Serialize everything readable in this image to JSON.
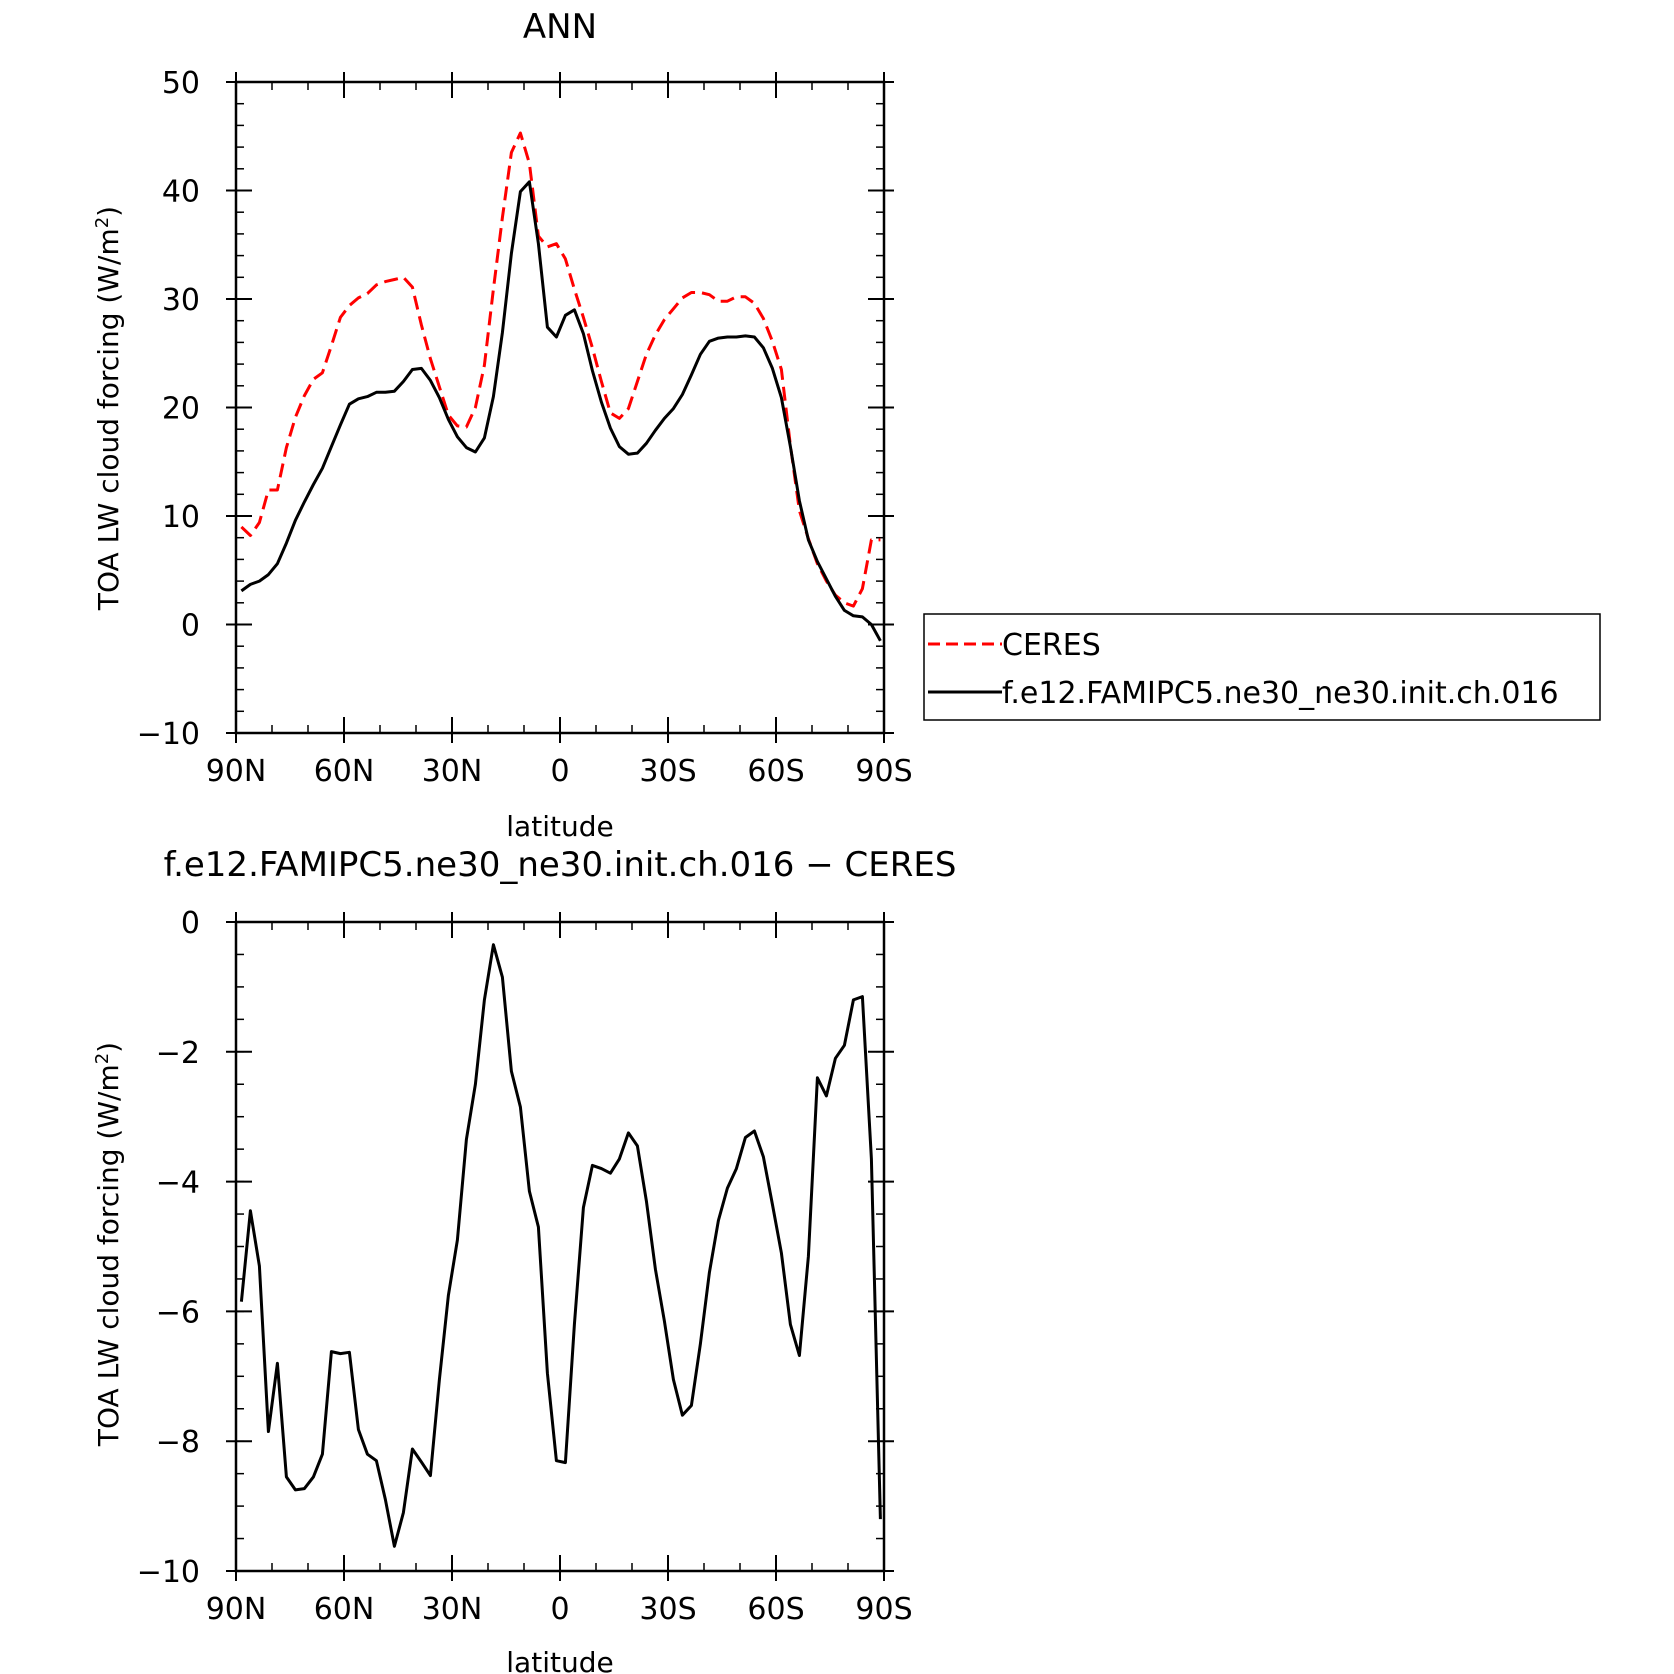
{
  "chart_data": [
    {
      "type": "line",
      "title": "ANN",
      "xlabel": "latitude",
      "ylabel": "TOA LW cloud forcing (W/m2)",
      "ylabel_main": "TOA LW cloud forcing (W/m",
      "ylabel_sup": "2",
      "ylabel_end": ")",
      "xlim": [
        90,
        -90
      ],
      "ylim": [
        -10,
        50
      ],
      "xticks": [
        {
          "value": 90,
          "label": "90N"
        },
        {
          "value": 60,
          "label": "60N"
        },
        {
          "value": 30,
          "label": "30N"
        },
        {
          "value": 0,
          "label": "0"
        },
        {
          "value": -30,
          "label": "30S"
        },
        {
          "value": -60,
          "label": "60S"
        },
        {
          "value": -90,
          "label": "90S"
        }
      ],
      "yticks": [
        {
          "value": 50,
          "label": "50"
        },
        {
          "value": 40,
          "label": "40"
        },
        {
          "value": 30,
          "label": "30"
        },
        {
          "value": 20,
          "label": "20"
        },
        {
          "value": 10,
          "label": "10"
        },
        {
          "value": 0,
          "label": "0"
        },
        {
          "value": -10,
          "label": "−10"
        }
      ],
      "legend": "right",
      "series": [
        {
          "name": "CERES",
          "color": "#ff0000",
          "dash": true,
          "x": [
            88.5,
            86,
            83.5,
            81,
            78.5,
            76,
            73.5,
            71,
            68.5,
            66,
            63.5,
            61,
            58.5,
            56,
            53.5,
            51,
            48.5,
            46,
            43.5,
            41,
            38.5,
            36,
            33.5,
            31,
            28.5,
            26,
            23.5,
            21,
            18.5,
            16,
            13.5,
            11,
            8.5,
            6,
            3.5,
            1,
            -1.5,
            -4,
            -6.5,
            -9,
            -11.5,
            -14,
            -16.5,
            -19,
            -21.5,
            -24,
            -26.5,
            -29,
            -31.5,
            -34,
            -36.5,
            -39,
            -41.5,
            -44,
            -46.5,
            -49,
            -51.5,
            -54,
            -56.5,
            -59,
            -61.5,
            -64,
            -66.5,
            -69,
            -71.5,
            -74,
            -76.5,
            -79,
            -81.5,
            -84,
            -86.5,
            -89
          ],
          "y": [
            9,
            8.2,
            9.4,
            12.4,
            12.4,
            16.3,
            19.1,
            21.1,
            22.6,
            23.2,
            25.7,
            28.3,
            29.4,
            30.1,
            30.5,
            31.3,
            31.6,
            31.8,
            32,
            31.1,
            27.6,
            24.5,
            21.9,
            19.3,
            18.3,
            18.2,
            20,
            23.9,
            30.9,
            37.5,
            43.5,
            45.3,
            42.5,
            35.8,
            34.8,
            35.1,
            33.7,
            30.9,
            28.3,
            25.5,
            22.4,
            19.5,
            19,
            19.9,
            22.4,
            24.9,
            26.7,
            28.1,
            29.1,
            30.1,
            30.6,
            30.6,
            30.4,
            29.8,
            29.8,
            30.2,
            30.2,
            29.6,
            28.2,
            26.1,
            23.5,
            16.5,
            10.5,
            7.9,
            5.6,
            4,
            2.7,
            2,
            1.7,
            3.3,
            7.8,
            7.8
          ]
        },
        {
          "name": "f.e12.FAMIPC5.ne30_ne30.init.ch.016",
          "color": "#000000",
          "dash": false,
          "x": [
            88.5,
            86,
            83.5,
            81,
            78.5,
            76,
            73.5,
            71,
            68.5,
            66,
            63.5,
            61,
            58.5,
            56,
            53.5,
            51,
            48.5,
            46,
            43.5,
            41,
            38.5,
            36,
            33.5,
            31,
            28.5,
            26,
            23.5,
            21,
            18.5,
            16,
            13.5,
            11,
            8.5,
            6,
            3.5,
            1,
            -1.5,
            -4,
            -6.5,
            -9,
            -11.5,
            -14,
            -16.5,
            -19,
            -21.5,
            -24,
            -26.5,
            -29,
            -31.5,
            -34,
            -36.5,
            -39,
            -41.5,
            -44,
            -46.5,
            -49,
            -51.5,
            -54,
            -56.5,
            -59,
            -61.5,
            -64,
            -66.5,
            -69,
            -71.5,
            -74,
            -76.5,
            -79,
            -81.5,
            -84,
            -86.5,
            -89
          ],
          "y": [
            3.1,
            3.7,
            4,
            4.6,
            5.6,
            7.5,
            9.6,
            11.3,
            12.9,
            14.4,
            16.4,
            18.4,
            20.3,
            20.8,
            21,
            21.4,
            21.4,
            21.5,
            22.4,
            23.5,
            23.6,
            22.5,
            20.9,
            18.9,
            17.3,
            16.3,
            15.9,
            17.2,
            21,
            26.9,
            34.2,
            39.9,
            40.8,
            35.1,
            27.4,
            26.5,
            28.5,
            29,
            26.8,
            23.4,
            20.5,
            18.1,
            16.4,
            15.7,
            15.8,
            16.7,
            17.9,
            19,
            19.9,
            21.2,
            23,
            24.9,
            26.1,
            26.4,
            26.5,
            26.5,
            26.6,
            26.5,
            25.5,
            23.6,
            20.9,
            16.4,
            11.4,
            7.8,
            5.8,
            4.2,
            2.6,
            1.3,
            0.8,
            0.7,
            0,
            -1.5
          ]
        }
      ]
    },
    {
      "type": "line",
      "title": "f.e12.FAMIPC5.ne30_ne30.init.ch.016 − CERES",
      "xlabel": "latitude",
      "ylabel": "TOA LW cloud forcing (W/m2)",
      "ylabel_main": "TOA LW cloud forcing (W/m",
      "ylabel_sup": "2",
      "ylabel_end": ")",
      "xlim": [
        90,
        -90
      ],
      "ylim": [
        -10,
        0
      ],
      "xticks": [
        {
          "value": 90,
          "label": "90N"
        },
        {
          "value": 60,
          "label": "60N"
        },
        {
          "value": 30,
          "label": "30N"
        },
        {
          "value": 0,
          "label": "0"
        },
        {
          "value": -30,
          "label": "30S"
        },
        {
          "value": -60,
          "label": "60S"
        },
        {
          "value": -90,
          "label": "90S"
        }
      ],
      "yticks": [
        {
          "value": 0,
          "label": "0"
        },
        {
          "value": -2,
          "label": "−2"
        },
        {
          "value": -4,
          "label": "−4"
        },
        {
          "value": -6,
          "label": "−6"
        },
        {
          "value": -8,
          "label": "−8"
        },
        {
          "value": -10,
          "label": "−10"
        }
      ],
      "series": [
        {
          "color": "#000000",
          "dash": false,
          "x": [
            88.5,
            86,
            83.5,
            81,
            78.5,
            76,
            73.5,
            71,
            68.5,
            66,
            63.5,
            61,
            58.5,
            56,
            53.5,
            51,
            48.5,
            46,
            43.5,
            41,
            38.5,
            36,
            33.5,
            31,
            28.5,
            26,
            23.5,
            21,
            18.5,
            16,
            13.5,
            11,
            8.5,
            6,
            3.5,
            1,
            -1.5,
            -4,
            -6.5,
            -9,
            -11.5,
            -14,
            -16.5,
            -19,
            -21.5,
            -24,
            -26.5,
            -29,
            -31.5,
            -34,
            -36.5,
            -39,
            -41.5,
            -44,
            -46.5,
            -49,
            -51.5,
            -54,
            -56.5,
            -59,
            -61.5,
            -64,
            -66.5,
            -69,
            -71.5,
            -74,
            -76.5,
            -79,
            -81.5,
            -84,
            -86.5,
            -89
          ],
          "y": [
            -5.85,
            -4.45,
            -5.3,
            -7.85,
            -6.8,
            -8.55,
            -8.75,
            -8.73,
            -8.55,
            -8.2,
            -6.62,
            -6.65,
            -6.63,
            -7.82,
            -8.2,
            -8.3,
            -8.9,
            -9.62,
            -9.1,
            -8.12,
            -8.32,
            -8.53,
            -7.05,
            -5.75,
            -4.9,
            -3.35,
            -2.5,
            -1.2,
            -0.35,
            -0.85,
            -2.3,
            -2.85,
            -4.15,
            -4.7,
            -6.95,
            -8.3,
            -8.33,
            -6.2,
            -4.4,
            -3.75,
            -3.8,
            -3.87,
            -3.65,
            -3.25,
            -3.45,
            -4.3,
            -5.35,
            -6.15,
            -7.05,
            -7.6,
            -7.45,
            -6.5,
            -5.4,
            -4.6,
            -4.1,
            -3.8,
            -3.32,
            -3.22,
            -3.62,
            -4.35,
            -5.1,
            -6.2,
            -6.68,
            -5.15,
            -2.4,
            -2.68,
            -2.1,
            -1.9,
            -1.2,
            -1.15,
            -3.65,
            -9.2
          ]
        }
      ]
    }
  ]
}
